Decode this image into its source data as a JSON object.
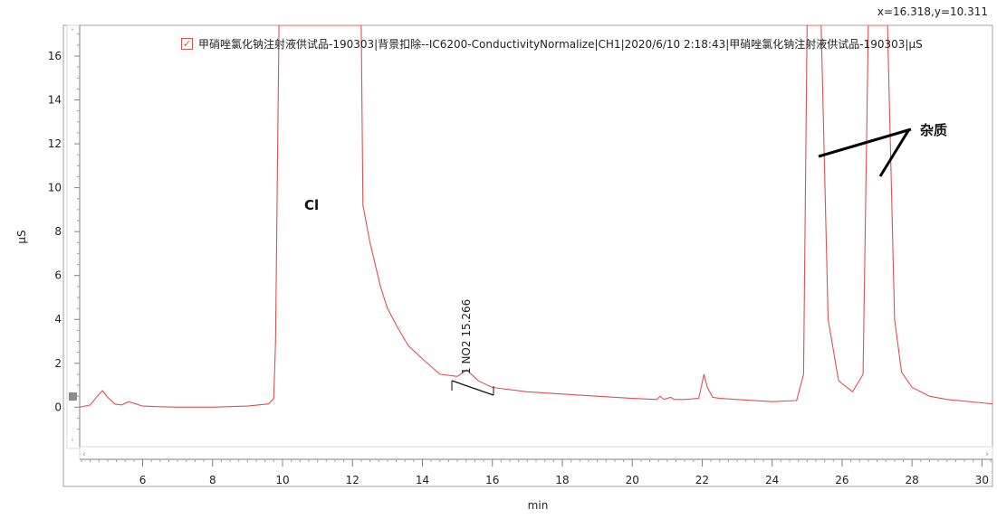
{
  "readout": "x=16.318,y=10.311",
  "legend": {
    "check_glyph": "✓",
    "label": "甲硝唑氯化钠注射液供试品-190303|背景扣除--IC6200-ConductivityNormalize|CH1|2020/6/10  2:18:43|甲硝唑氯化钠注射液供试品-190303|μS"
  },
  "colors": {
    "trace": "#e05050",
    "axis": "#808080",
    "text": "#222222"
  },
  "chart_data": {
    "type": "line",
    "xlabel": "min",
    "ylabel": "μS",
    "xlim": [
      4.2,
      30.3
    ],
    "ylim": [
      -1.8,
      17.4
    ],
    "xticks": [
      6,
      8,
      10,
      12,
      14,
      16,
      18,
      20,
      22,
      24,
      26,
      28,
      30
    ],
    "yticks": [
      0,
      2,
      4,
      6,
      8,
      10,
      12,
      14,
      16
    ],
    "grid": false,
    "series": [
      {
        "x": [
          4.2,
          4.5,
          4.7,
          4.85,
          5.0,
          5.2,
          5.4,
          5.6,
          5.8,
          6.0,
          6.5,
          7.0,
          8.0,
          9.0,
          9.6,
          9.75,
          9.8,
          9.9,
          10.0,
          12.25,
          12.3,
          12.5,
          12.8,
          13.0,
          13.3,
          13.6,
          14.0,
          14.5,
          15.0,
          15.27,
          15.6,
          16.0,
          17.0,
          18.0,
          19.0,
          20.0,
          20.7,
          20.8,
          20.9,
          21.1,
          21.2,
          21.5,
          21.9,
          22.05,
          22.15,
          22.3,
          22.5,
          23.0,
          24.0,
          24.7,
          24.9,
          25.0,
          25.4,
          25.6,
          25.9,
          26.3,
          26.6,
          26.75,
          26.85,
          27.3,
          27.5,
          27.7,
          28.0,
          28.5,
          29.0,
          30.0,
          30.3
        ],
        "y": [
          0.0,
          0.1,
          0.5,
          0.75,
          0.45,
          0.15,
          0.1,
          0.25,
          0.15,
          0.05,
          0.02,
          0.0,
          0.0,
          0.05,
          0.15,
          0.4,
          3.0,
          17.4,
          17.4,
          17.4,
          9.2,
          7.5,
          5.5,
          4.5,
          3.6,
          2.8,
          2.2,
          1.5,
          1.4,
          1.7,
          1.2,
          0.9,
          0.7,
          0.6,
          0.5,
          0.4,
          0.35,
          0.5,
          0.35,
          0.45,
          0.35,
          0.35,
          0.4,
          1.5,
          0.9,
          0.45,
          0.4,
          0.35,
          0.25,
          0.3,
          1.5,
          17.4,
          17.4,
          4.0,
          1.2,
          0.7,
          1.5,
          17.4,
          17.4,
          17.4,
          4.0,
          1.6,
          0.9,
          0.5,
          0.35,
          0.2,
          0.15
        ]
      }
    ],
    "annotations": {
      "cl_label": "Cl",
      "peak_label": "1 NO2 15.266",
      "impurity_label": "杂质"
    }
  }
}
